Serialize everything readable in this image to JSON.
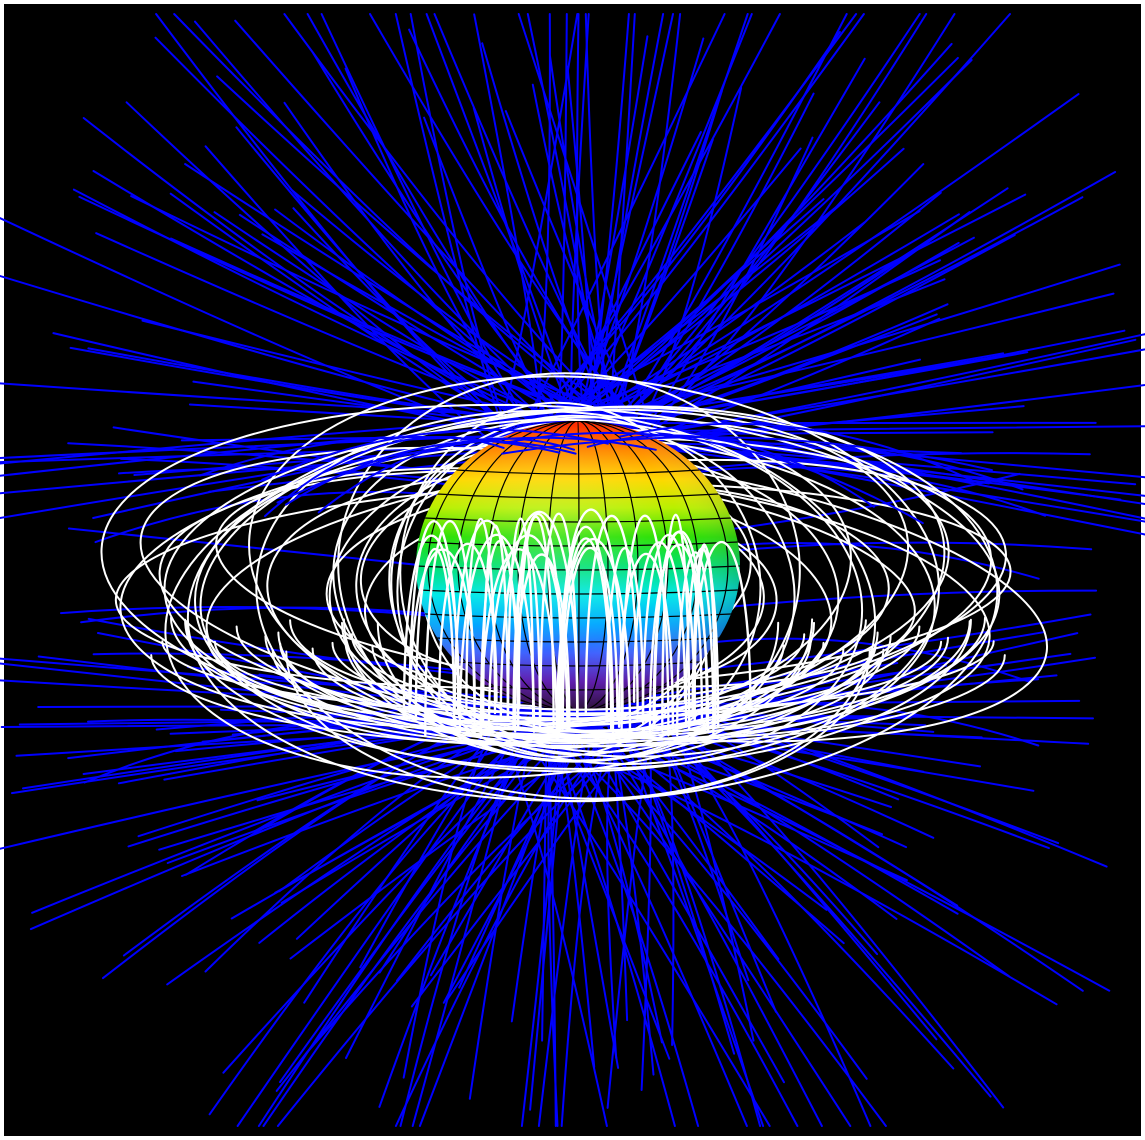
{
  "figure": {
    "background_color": "#000000",
    "frame_color": "#ffffff",
    "open_field_line_color": "#0000ff",
    "closed_field_line_color": "#ffffff",
    "grid_line_color": "#000000",
    "surface_colormap": [
      "#ff2000",
      "#ff8800",
      "#ffd800",
      "#b8f000",
      "#28e000",
      "#00e070",
      "#00e8e8",
      "#00a8ff",
      "#3c60ff",
      "#5a10b0",
      "#2a0838"
    ]
  }
}
